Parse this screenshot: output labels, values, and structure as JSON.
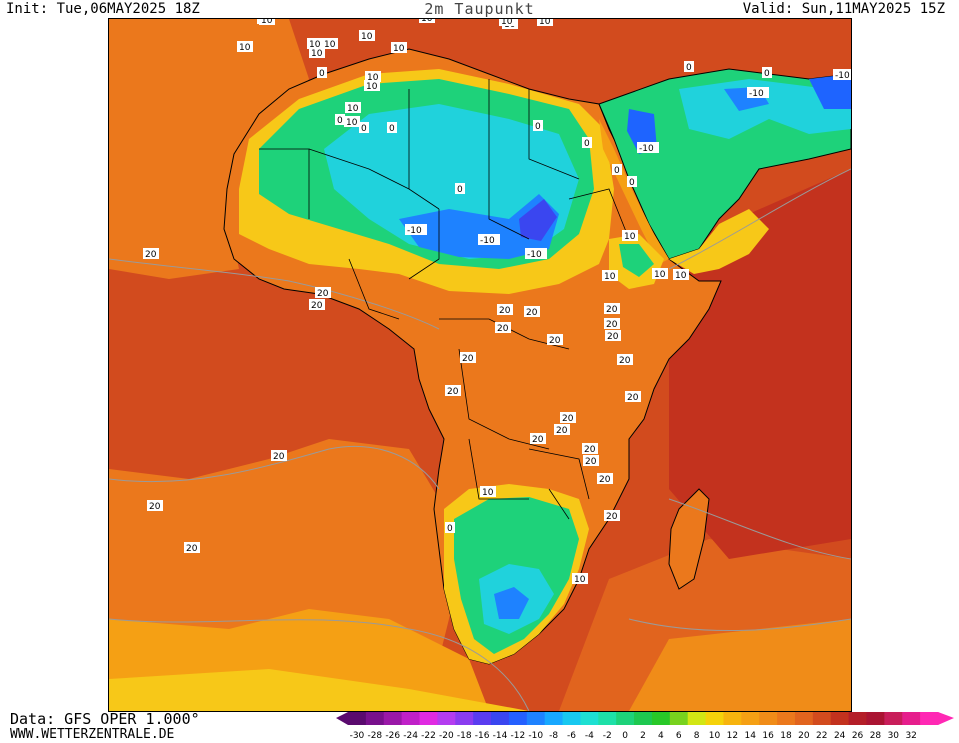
{
  "header": {
    "init": "Init: Tue,06MAY2025 18Z",
    "title": "2m Taupunkt",
    "valid": "Valid: Sun,11MAY2025 15Z"
  },
  "footer": {
    "source": "Data: GFS OPER 1.000°",
    "website": "WWW.WETTERZENTRALE.DE"
  },
  "colors": {
    "ocean_deep_red": "#d2401e",
    "orange": "#ec7d1a",
    "yellow": "#f7c818",
    "green": "#1fd26c",
    "cyan": "#20d2dc",
    "blue": "#1e64ff",
    "dark_blue": "#2a2ad2",
    "border_line": "#000000",
    "contour_line": "#9a9a9a"
  },
  "legend": {
    "ticks": [
      "-30",
      "-28",
      "-26",
      "-24",
      "-22",
      "-20",
      "-18",
      "-16",
      "-14",
      "-12",
      "-10",
      "-8",
      "-6",
      "-4",
      "-2",
      "0",
      "2",
      "4",
      "6",
      "8",
      "10",
      "12",
      "14",
      "16",
      "18",
      "20",
      "22",
      "24",
      "26",
      "28",
      "30",
      "32"
    ],
    "colors": [
      "#5a0a6e",
      "#78108c",
      "#9a18a8",
      "#c020c8",
      "#e02ae2",
      "#b43cf0",
      "#8a3cf0",
      "#5a3cf0",
      "#3a46f0",
      "#2460ff",
      "#1e82ff",
      "#18a8ff",
      "#18c8f0",
      "#1ee0d2",
      "#1ee0a8",
      "#1ed27a",
      "#1ec850",
      "#28c828",
      "#78d21e",
      "#d2e614",
      "#f5d20a",
      "#f7b40e",
      "#f5a014",
      "#f08c18",
      "#eb781c",
      "#e1641e",
      "#d24b1e",
      "#c3321e",
      "#b41e28",
      "#aa1432",
      "#c81e5a",
      "#e61e8c",
      "#ff28b4"
    ]
  },
  "contour_labels": [
    {
      "t": "10"
    },
    {
      "t": "10"
    },
    {
      "t": "10"
    },
    {
      "t": "10"
    },
    {
      "t": "10"
    },
    {
      "t": "10"
    },
    {
      "t": "10"
    },
    {
      "t": "10"
    },
    {
      "t": "10"
    },
    {
      "t": "10"
    },
    {
      "t": "0"
    },
    {
      "t": "0"
    },
    {
      "t": "0"
    },
    {
      "t": "0"
    },
    {
      "t": "0"
    },
    {
      "t": "0"
    },
    {
      "t": "0"
    },
    {
      "t": "0"
    },
    {
      "t": "-10"
    },
    {
      "t": "-10"
    },
    {
      "t": "-10"
    },
    {
      "t": "-10"
    },
    {
      "t": "-10"
    },
    {
      "t": "-10"
    },
    {
      "t": "20"
    },
    {
      "t": "20"
    },
    {
      "t": "20"
    },
    {
      "t": "20"
    },
    {
      "t": "20"
    },
    {
      "t": "20"
    },
    {
      "t": "20"
    },
    {
      "t": "20"
    },
    {
      "t": "20"
    },
    {
      "t": "20"
    },
    {
      "t": "20"
    },
    {
      "t": "20"
    },
    {
      "t": "20"
    },
    {
      "t": "20"
    },
    {
      "t": "20"
    },
    {
      "t": "20"
    },
    {
      "t": "20"
    },
    {
      "t": "20"
    },
    {
      "t": "20"
    },
    {
      "t": "20"
    },
    {
      "t": "10"
    },
    {
      "t": "10"
    },
    {
      "t": "10"
    },
    {
      "t": "10"
    },
    {
      "t": "10"
    },
    {
      "t": "10"
    },
    {
      "t": "10"
    },
    {
      "t": "10"
    },
    {
      "t": "10"
    },
    {
      "t": "10"
    },
    {
      "t": "0"
    },
    {
      "t": "0"
    },
    {
      "t": "0"
    },
    {
      "t": "0"
    },
    {
      "t": "10"
    },
    {
      "t": "10"
    },
    {
      "t": "20"
    },
    {
      "t": "20"
    },
    {
      "t": "20"
    },
    {
      "t": "20"
    }
  ]
}
